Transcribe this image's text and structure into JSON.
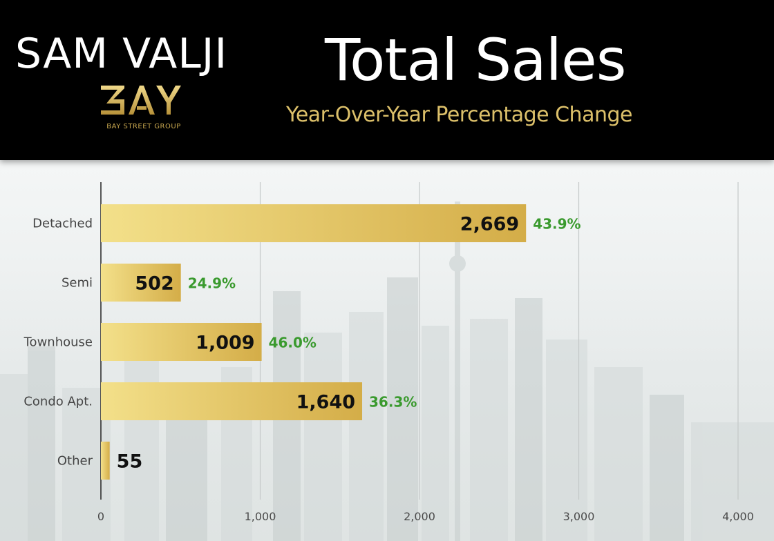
{
  "header": {
    "brand_name": "SAM VALJI",
    "logo_text": "BAY",
    "logo_subtext": "BAY STREET GROUP"
  },
  "colors": {
    "header_bg": "#000000",
    "subtitle_gold": "#dcc06a",
    "bar_gold_light": "#f3e08a",
    "bar_gold_dark": "#d4ad48",
    "pct_green": "#3a9a2e"
  },
  "chart_data": {
    "type": "bar",
    "orientation": "horizontal",
    "title": "Total Sales",
    "subtitle": "Year-Over-Year Percentage Change",
    "categories": [
      "Detached",
      "Semi",
      "Townhouse",
      "Condo Apt.",
      "Other"
    ],
    "values": [
      2669,
      502,
      1009,
      1640,
      55
    ],
    "value_labels": [
      "2,669",
      "502",
      "1,009",
      "1,640",
      "55"
    ],
    "pct_change_labels": [
      "43.9%",
      "24.9%",
      "46.0%",
      "36.3%",
      ""
    ],
    "xlim": [
      0,
      4000
    ],
    "x_ticks": [
      0,
      1000,
      2000,
      3000,
      4000
    ],
    "x_tick_labels": [
      "0",
      "1,000",
      "2,000",
      "3,000",
      "4,000"
    ],
    "grid": true
  }
}
